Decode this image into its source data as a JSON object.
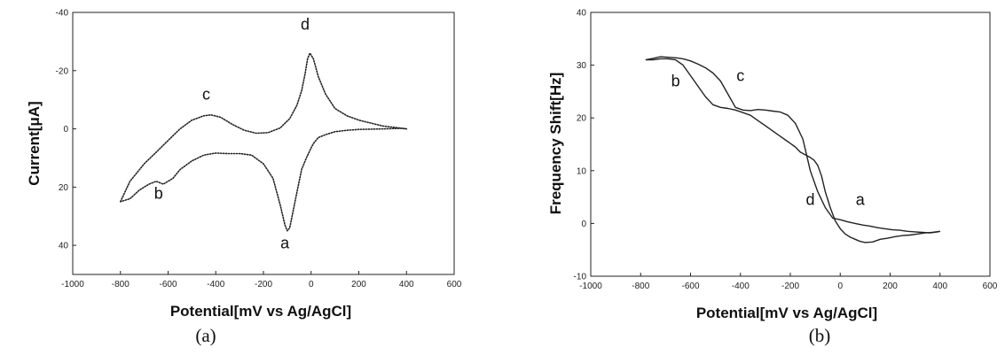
{
  "chart_data": [
    {
      "type": "line",
      "panel_label": "(a)",
      "xlabel": "Potential[mV vs Ag/AgCl]",
      "ylabel": "Current[μA]",
      "xlim": [
        -1000,
        600
      ],
      "ylim": [
        -40,
        50
      ],
      "y_inverted": true,
      "xticks": [
        -1000,
        -800,
        -600,
        -400,
        -200,
        0,
        200,
        400,
        600
      ],
      "yticks": [
        -40,
        -20,
        0,
        20,
        40
      ],
      "grid": false,
      "series": [
        {
          "style": "dotted",
          "color": "#222222",
          "x": [
            -800,
            -760,
            -700,
            -650,
            -600,
            -550,
            -500,
            -450,
            -420,
            -380,
            -330,
            -280,
            -230,
            -180,
            -130,
            -90,
            -60,
            -40,
            -25,
            -15,
            -5,
            10,
            30,
            60,
            100,
            150,
            200,
            250,
            300,
            350,
            400,
            380,
            300,
            200,
            150,
            100,
            60,
            30,
            10,
            0,
            -20,
            -40,
            -60,
            -80,
            -90,
            -100,
            -110,
            -130,
            -160,
            -200,
            -250,
            -300,
            -350,
            -400,
            -450,
            -500,
            -550,
            -580,
            -620,
            -650,
            -680,
            -720,
            -760,
            -800
          ],
          "y": [
            25,
            18,
            12,
            8,
            4,
            0,
            -3,
            -4.5,
            -4.8,
            -4,
            -1.5,
            0.5,
            1.5,
            1.3,
            -0.3,
            -3.5,
            -8,
            -13,
            -19,
            -24,
            -26,
            -24,
            -18,
            -12,
            -7,
            -4.5,
            -3,
            -2,
            -1,
            -0.5,
            0,
            -0.2,
            0,
            0.2,
            0.5,
            1,
            2,
            3,
            5,
            6.5,
            10,
            14,
            22,
            30,
            34,
            35,
            33,
            26,
            17,
            12,
            9,
            8.5,
            8.5,
            8.3,
            9,
            11,
            14,
            17,
            19,
            18,
            19,
            21,
            24,
            25
          ]
        }
      ],
      "annotations": [
        {
          "text": "a",
          "x": -110,
          "y": 41
        },
        {
          "text": "b",
          "x": -640,
          "y": 24
        },
        {
          "text": "c",
          "x": -440,
          "y": -10
        },
        {
          "text": "d",
          "x": -25,
          "y": -34
        }
      ]
    },
    {
      "type": "line",
      "panel_label": "(b)",
      "xlabel": "Potential[mV vs Ag/AgCl]",
      "ylabel": "Frequency Shift[Hz]",
      "xlim": [
        -1000,
        600
      ],
      "ylim": [
        -10,
        40
      ],
      "xticks": [
        -1000,
        -800,
        -600,
        -400,
        -200,
        0,
        200,
        400,
        600
      ],
      "yticks": [
        -10,
        0,
        10,
        20,
        30,
        40
      ],
      "grid": false,
      "series": [
        {
          "style": "solid",
          "color": "#222222",
          "x": [
            -780,
            -750,
            -720,
            -690,
            -660,
            -630,
            -600,
            -570,
            -540,
            -510,
            -480,
            -450,
            -420,
            -390,
            -360,
            -330,
            -300,
            -270,
            -240,
            -210,
            -180,
            -150,
            -120,
            -90,
            -60,
            -30,
            0,
            30,
            60,
            90,
            120,
            150,
            180,
            210,
            240,
            270,
            300,
            330,
            360,
            390,
            400
          ],
          "y": [
            31,
            31.3,
            31.6,
            31.5,
            31.4,
            31.2,
            30.8,
            30.2,
            29.5,
            28.5,
            27,
            24.5,
            22,
            21.5,
            21.4,
            21.6,
            21.5,
            21.3,
            21.1,
            20.5,
            19,
            16,
            10,
            6,
            3,
            1,
            0.7,
            0.3,
            0,
            -0.3,
            -0.5,
            -0.8,
            -1,
            -1.2,
            -1.3,
            -1.5,
            -1.6,
            -1.7,
            -1.8,
            -1.6,
            -1.5
          ]
        },
        {
          "style": "solid",
          "color": "#222222",
          "x": [
            400,
            370,
            340,
            310,
            280,
            250,
            220,
            190,
            160,
            130,
            100,
            80,
            60,
            40,
            20,
            0,
            -20,
            -40,
            -60,
            -75,
            -90,
            -105,
            -120,
            -140,
            -160,
            -180,
            -210,
            -240,
            -270,
            -300,
            -330,
            -360,
            -390,
            -420,
            -450,
            -480,
            -510,
            -540,
            -570,
            -600,
            -630,
            -660,
            -690,
            -720,
            -750,
            -780
          ],
          "y": [
            -1.5,
            -1.7,
            -1.8,
            -2,
            -2.2,
            -2.3,
            -2.5,
            -2.8,
            -3,
            -3.5,
            -3.6,
            -3.4,
            -3,
            -2.6,
            -2,
            -1,
            0.5,
            3,
            6,
            9,
            11,
            12,
            12.5,
            13,
            13.5,
            14.5,
            15.5,
            16.5,
            17.5,
            18.5,
            19.5,
            20.5,
            21,
            21.5,
            21.8,
            22,
            22.5,
            24,
            26,
            28,
            30,
            31,
            31.2,
            31.2,
            31,
            31
          ]
        }
      ],
      "annotations": [
        {
          "text": "a",
          "x": 80,
          "y": 3.5
        },
        {
          "text": "b",
          "x": -660,
          "y": 26
        },
        {
          "text": "c",
          "x": -400,
          "y": 27
        },
        {
          "text": "d",
          "x": -120,
          "y": 3.5
        }
      ]
    }
  ]
}
